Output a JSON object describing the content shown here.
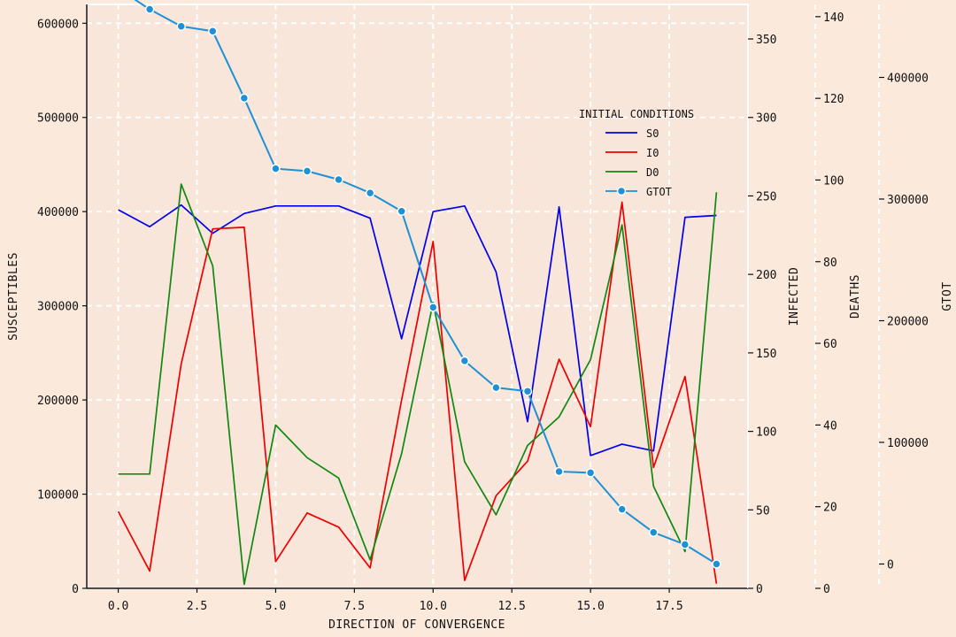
{
  "chart_data": {
    "type": "line",
    "title": "",
    "xlabel": "DIRECTION OF CONVERGENCE",
    "xlim": [
      -1,
      20
    ],
    "xticks": [
      "0.0",
      "2.5",
      "5.0",
      "7.5",
      "10.0",
      "12.5",
      "15.0",
      "17.5"
    ],
    "x": [
      0,
      1,
      2,
      3,
      4,
      5,
      6,
      7,
      8,
      9,
      10,
      11,
      12,
      13,
      14,
      15,
      16,
      17,
      18,
      19
    ],
    "axes": [
      {
        "id": "susceptibles",
        "label": "SUSCEPTIBLES",
        "side": "left",
        "ylim": [
          0,
          620000
        ],
        "ticks": [
          "0",
          "100000",
          "200000",
          "300000",
          "400000",
          "500000",
          "600000"
        ]
      },
      {
        "id": "infected",
        "label": "INFECTED",
        "side": "right",
        "ylim": [
          0,
          372
        ],
        "ticks": [
          "0",
          "50",
          "100",
          "150",
          "200",
          "250",
          "300",
          "350"
        ]
      },
      {
        "id": "deaths",
        "label": "DEATHS",
        "side": "right",
        "ylim": [
          0,
          143
        ],
        "ticks": [
          "0",
          "20",
          "40",
          "60",
          "80",
          "100",
          "120",
          "140"
        ]
      },
      {
        "id": "gtot",
        "label": "GTOT",
        "side": "right",
        "ylim": [
          -20000,
          460000
        ],
        "ticks": [
          "0",
          "100000",
          "200000",
          "300000",
          "400000"
        ]
      }
    ],
    "series": [
      {
        "name": "S0",
        "axis": "susceptibles",
        "color": "#0000ee",
        "marker": false,
        "values": [
          402000,
          384000,
          407000,
          377000,
          398000,
          406000,
          406000,
          406000,
          393000,
          265000,
          400000,
          406000,
          336000,
          177000,
          405000,
          141000,
          153000,
          146000,
          394000,
          396000
        ]
      },
      {
        "name": "I0",
        "axis": "infected",
        "color": "#ee0000",
        "marker": false,
        "values": [
          49,
          11,
          143,
          229,
          230,
          17,
          48,
          39,
          13,
          120,
          221,
          5,
          59,
          81,
          146,
          103,
          246,
          77,
          135,
          3
        ]
      },
      {
        "name": "D0",
        "axis": "deaths",
        "color": "#118811",
        "marker": false,
        "values": [
          28,
          28,
          99,
          79,
          1,
          40,
          32,
          27,
          7,
          33,
          70,
          31,
          18,
          35,
          42,
          56,
          89,
          25,
          9,
          97
        ]
      },
      {
        "name": "GTOT",
        "axis": "gtot",
        "color": "#1e90d6",
        "marker": true,
        "values": [
          473000,
          456000,
          442000,
          438000,
          383000,
          325000,
          323000,
          316000,
          305000,
          290000,
          211000,
          167000,
          145000,
          142000,
          76000,
          75000,
          45000,
          26000,
          16000,
          0
        ]
      }
    ],
    "legend": {
      "title": "INITIAL CONDITIONS",
      "position": "upper-right"
    },
    "grid": true
  }
}
